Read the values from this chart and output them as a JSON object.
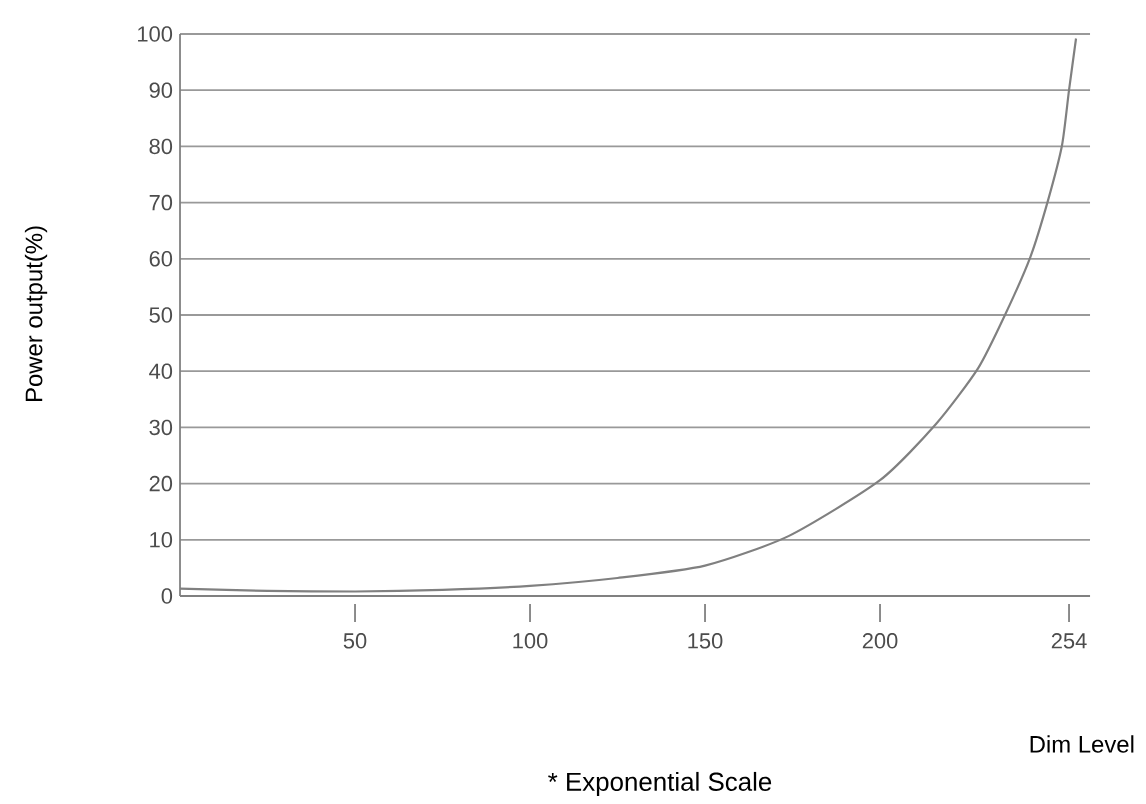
{
  "chart_data": {
    "type": "line",
    "ylabel": "Power output(%)",
    "xlabel": "Dim Level",
    "annotations": [
      "* Exponential Scale"
    ],
    "x": [
      0,
      25,
      50,
      75,
      100,
      125,
      150,
      174,
      200,
      216,
      228,
      236,
      243,
      248,
      252,
      254,
      256
    ],
    "series": [
      {
        "color": "#808080",
        "values": [
          1.3,
          0.9,
          0.8,
          1.1,
          1.8,
          3.2,
          5.4,
          10.7,
          20.6,
          30.6,
          40.5,
          50.4,
          60.4,
          70.4,
          80.2,
          90,
          99.2
        ]
      }
    ],
    "xlim": [
      0,
      260
    ],
    "ylim": [
      0,
      100
    ],
    "xticks": [
      50,
      100,
      150,
      200,
      254
    ],
    "yticks": [
      0,
      10,
      20,
      30,
      40,
      50,
      60,
      70,
      80,
      90,
      100
    ],
    "grid": "y",
    "marker": "none",
    "line_style": "solid"
  }
}
